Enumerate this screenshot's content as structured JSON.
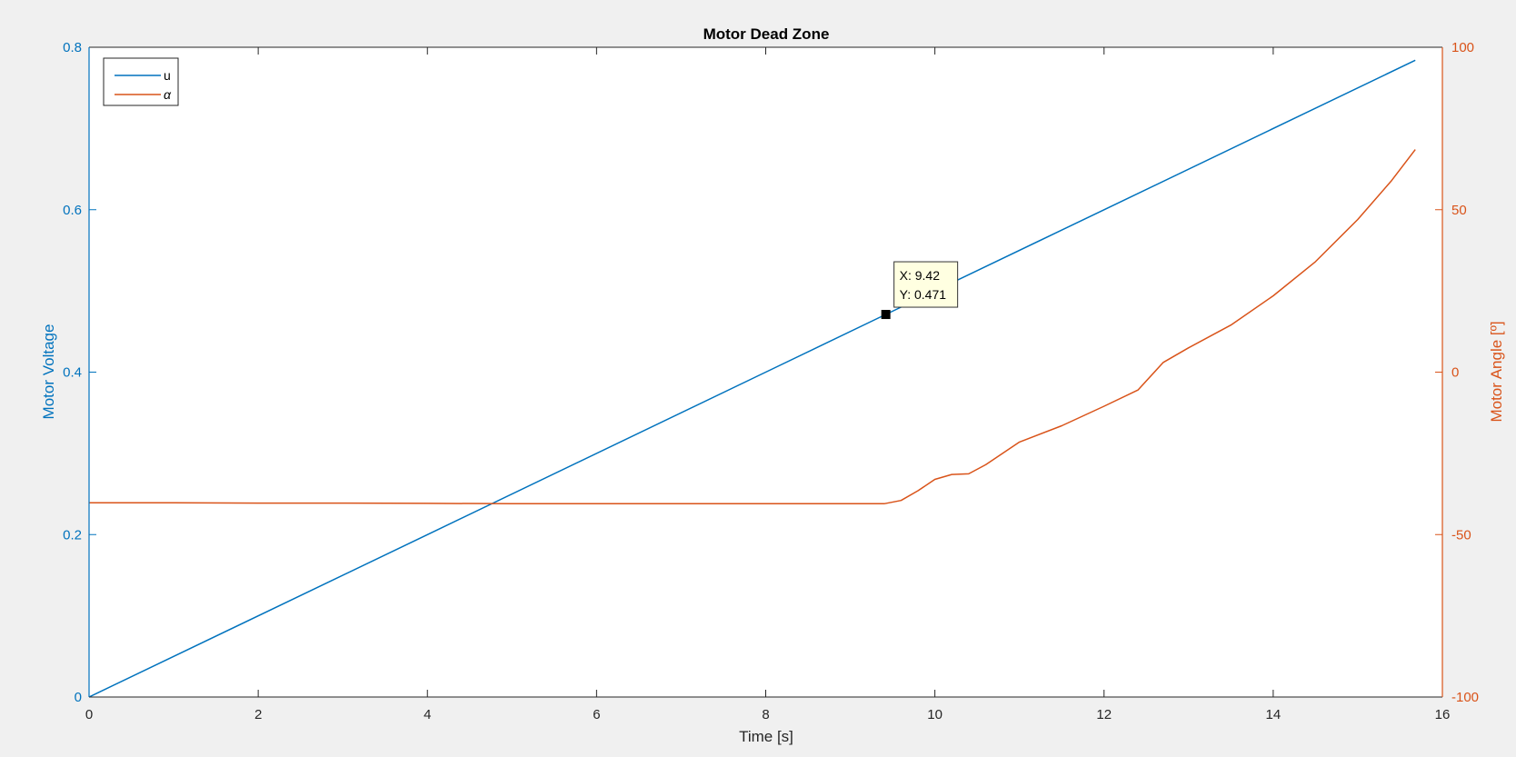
{
  "figure": {
    "background_color": "#f0f0f0",
    "plot_background_color": "#ffffff"
  },
  "chart_data": {
    "type": "line",
    "title": "Motor Dead Zone",
    "xlabel": "Time [s]",
    "xlim": [
      0,
      16
    ],
    "xticks": [
      0,
      2,
      4,
      6,
      8,
      10,
      12,
      14,
      16
    ],
    "y_left": {
      "label": "Motor Voltage",
      "lim": [
        0,
        0.8
      ],
      "ticks": [
        0,
        0.2,
        0.4,
        0.6,
        0.8
      ],
      "tick_labels": [
        "0",
        "0.2",
        "0.4",
        "0.6",
        "0.8"
      ],
      "color": "#0072bd"
    },
    "y_right": {
      "label": "Motor Angle [º]",
      "lim": [
        -100,
        100
      ],
      "ticks": [
        -100,
        -50,
        0,
        50,
        100
      ],
      "tick_labels": [
        "-100",
        "-50",
        "0",
        "50",
        "100"
      ],
      "color": "#d95319"
    },
    "grid": false,
    "legend": {
      "position": "top-left",
      "entries": [
        "u",
        "α"
      ]
    },
    "series": [
      {
        "name": "u",
        "axis": "left",
        "color": "#0072bd",
        "x": [
          0,
          4,
          8,
          9.42,
          12,
          15.68
        ],
        "y": [
          0,
          0.2,
          0.4,
          0.471,
          0.6,
          0.784
        ]
      },
      {
        "name": "α",
        "axis": "right",
        "color": "#d95319",
        "x": [
          0,
          1,
          2,
          3,
          4,
          5,
          6,
          7,
          8,
          9,
          9.4,
          9.6,
          9.8,
          10,
          10.2,
          10.4,
          10.6,
          10.8,
          11,
          11.5,
          12,
          12.4,
          12.7,
          13,
          13.5,
          14,
          14.5,
          15,
          15.4,
          15.68
        ],
        "y": [
          -40.2,
          -40.2,
          -40.3,
          -40.3,
          -40.4,
          -40.5,
          -40.5,
          -40.5,
          -40.5,
          -40.5,
          -40.5,
          -39.5,
          -36.5,
          -33,
          -31.5,
          -31.3,
          -28.5,
          -25,
          -21.5,
          -16.5,
          -10.5,
          -5.5,
          3,
          7.5,
          14.5,
          23.5,
          34,
          47,
          59,
          68.5
        ]
      }
    ],
    "datatip": {
      "x_text": "X: 9.42",
      "y_text": "Y: 0.471",
      "x": 9.42,
      "y": 0.471
    }
  }
}
